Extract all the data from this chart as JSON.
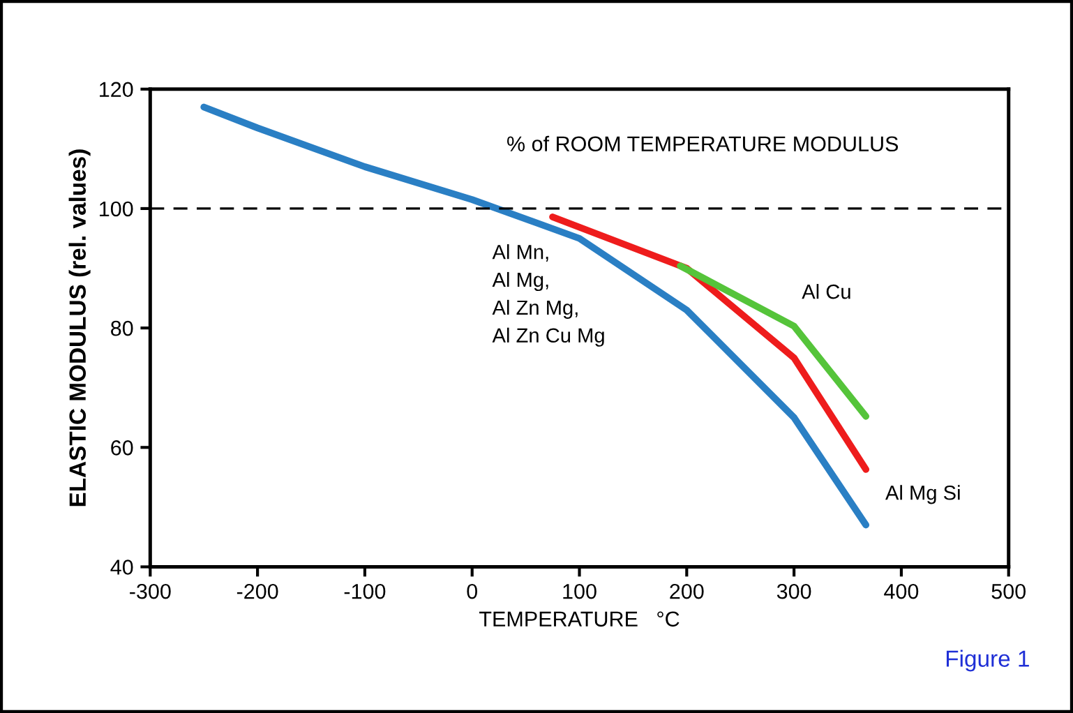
{
  "chart_data": {
    "type": "line",
    "xlabel": "TEMPERATURE   °C",
    "ylabel": "ELASTIC MODULUS (rel. values)",
    "annotations": [
      "% of ROOM TEMPERATURE MODULUS",
      "Figure 1"
    ],
    "series": [
      {
        "name": "Al Mn,\nAl Mg,\nAl Zn Mg,\nAl Zn Cu Mg",
        "color": "#2a7fc4",
        "x": [
          -250,
          -200,
          -100,
          0,
          100,
          200,
          300,
          367
        ],
        "values": [
          117,
          113.5,
          107,
          101.5,
          95,
          83,
          65,
          47
        ]
      },
      {
        "name": "Al Mg Si",
        "color": "#ee1c1c",
        "x": [
          75,
          200,
          300,
          367
        ],
        "values": [
          98.6,
          90,
          75,
          56.3
        ]
      },
      {
        "name": "Al Cu",
        "color": "#55c43a",
        "x": [
          194,
          300,
          367
        ],
        "values": [
          90.4,
          80.3,
          65.2
        ]
      }
    ],
    "xlim": [
      -300,
      500
    ],
    "xticks": [
      -300,
      -200,
      -100,
      0,
      100,
      200,
      300,
      400,
      500
    ],
    "ylim": [
      40,
      120
    ],
    "yticks": [
      40,
      60,
      80,
      100,
      120
    ],
    "ref_lines": [
      {
        "axis": "y",
        "value": 100,
        "color": "#000000",
        "line_style": "dashed"
      }
    ],
    "grid": false,
    "legend": false,
    "marker": "none",
    "line_style": "solid"
  }
}
